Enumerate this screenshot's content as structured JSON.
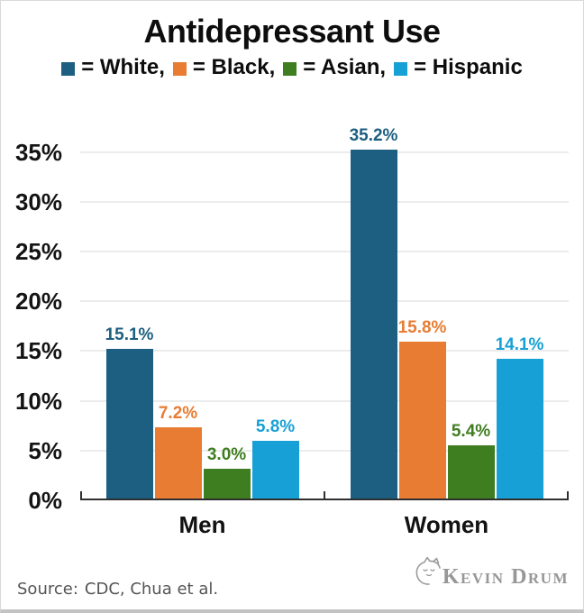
{
  "header": {
    "title": "Antidepressant Use"
  },
  "chart_data": {
    "type": "bar",
    "title": "Antidepressant Use",
    "categories": [
      "Men",
      "Women"
    ],
    "series": [
      {
        "name": "White",
        "color": "#1c5f80",
        "values": [
          15.1,
          35.2
        ]
      },
      {
        "name": "Black",
        "color": "#e87c33",
        "values": [
          7.2,
          15.8
        ]
      },
      {
        "name": "Asian",
        "color": "#3f7d21",
        "values": [
          3.0,
          5.4
        ]
      },
      {
        "name": "Hispanic",
        "color": "#17a0d5",
        "values": [
          5.8,
          14.1
        ]
      }
    ],
    "xlabel": "",
    "ylabel": "",
    "y_ticks": [
      0,
      5,
      10,
      15,
      20,
      25,
      30,
      35
    ],
    "y_tick_suffix": "%",
    "value_label_suffix": "%",
    "ylim": [
      0,
      38.6
    ],
    "grid": true,
    "legend_position": "top",
    "legend_separator": ","
  },
  "footer": {
    "source_label": "Source:",
    "source_text": "CDC, Chua et al.",
    "logo_text": "Kevin Drum"
  }
}
